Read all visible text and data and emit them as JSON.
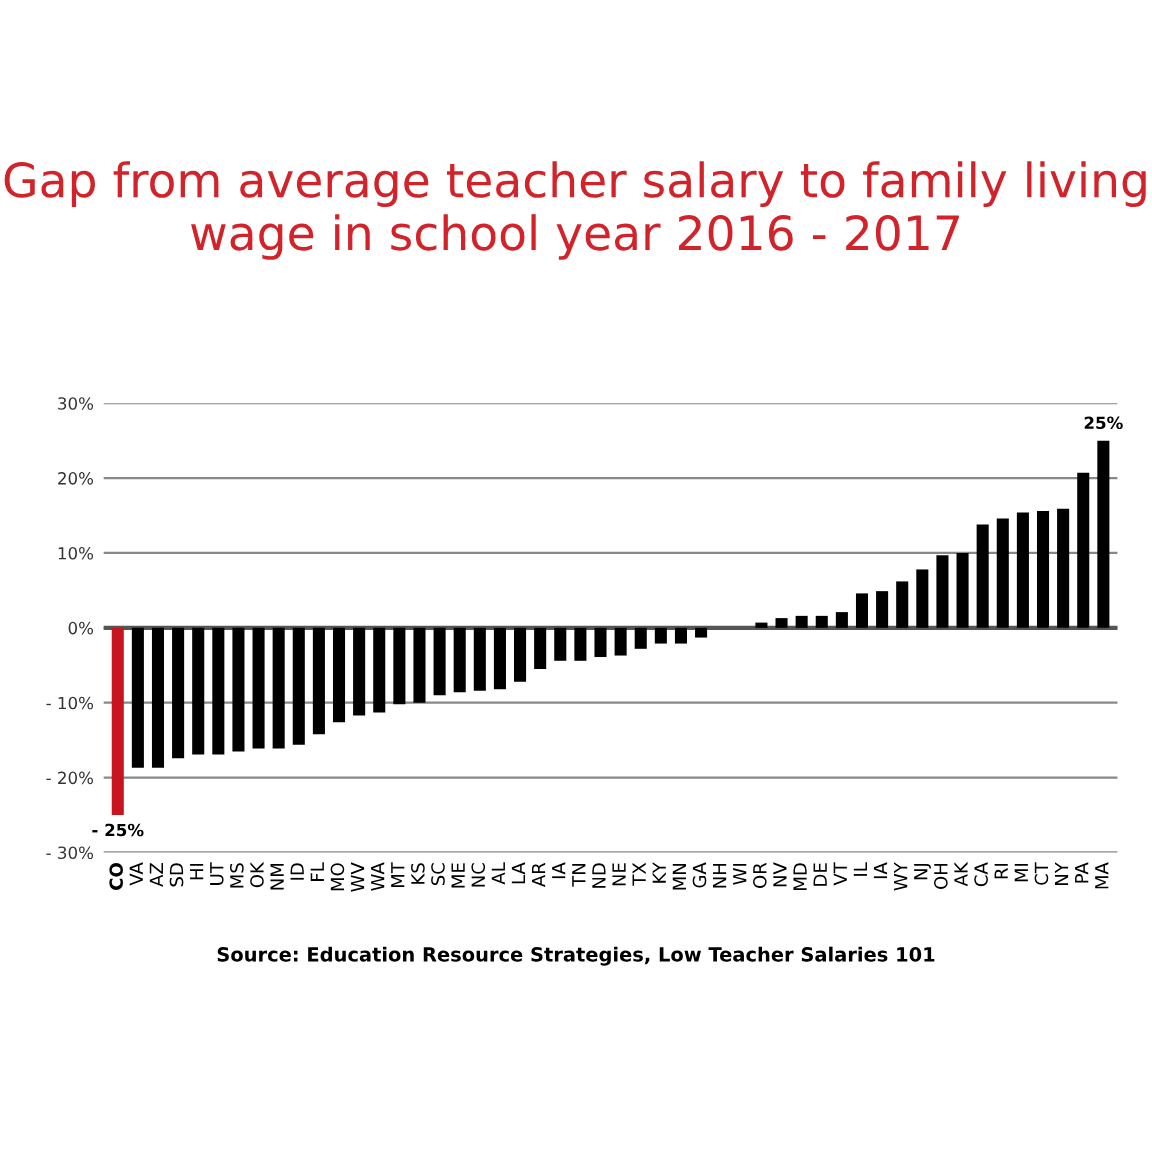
{
  "chart_data": {
    "type": "bar",
    "title": "Gap from average teacher salary to family living wage in school year 2016 - 2017",
    "categories": [
      "CO",
      "VA",
      "AZ",
      "SD",
      "HI",
      "UT",
      "MS",
      "OK",
      "NM",
      "ID",
      "FL",
      "MO",
      "WV",
      "WA",
      "MT",
      "KS",
      "SC",
      "ME",
      "NC",
      "AL",
      "LA",
      "AR",
      "IA",
      "TN",
      "ND",
      "NE",
      "TX",
      "KY",
      "MN",
      "GA",
      "NH",
      "WI",
      "OR",
      "NV",
      "MD",
      "DE",
      "VT",
      "IL",
      "IA",
      "WY",
      "NJ",
      "OH",
      "AK",
      "CA",
      "RI",
      "MI",
      "CT",
      "NY",
      "PA",
      "MA"
    ],
    "values": [
      -25,
      -18.7,
      -18.7,
      -17.4,
      -16.9,
      -16.9,
      -16.5,
      -16.1,
      -16.1,
      -15.6,
      -14.2,
      -12.6,
      -11.7,
      -11.3,
      -10.2,
      -10,
      -9,
      -8.6,
      -8.4,
      -8.2,
      -7.2,
      -5.5,
      -4.4,
      -4.4,
      -3.9,
      -3.7,
      -2.8,
      -2.1,
      -2.1,
      -1.3,
      0,
      0,
      0.7,
      1.3,
      1.6,
      1.6,
      2.1,
      4.6,
      4.9,
      6.2,
      7.8,
      9.7,
      10,
      13.8,
      14.6,
      15.4,
      15.6,
      15.9,
      20.7,
      25
    ],
    "colors": [
      "#c8141e",
      "#000000",
      "#000000",
      "#000000",
      "#000000",
      "#000000",
      "#000000",
      "#000000",
      "#000000",
      "#000000",
      "#000000",
      "#000000",
      "#000000",
      "#000000",
      "#000000",
      "#000000",
      "#000000",
      "#000000",
      "#000000",
      "#000000",
      "#000000",
      "#000000",
      "#000000",
      "#000000",
      "#000000",
      "#000000",
      "#000000",
      "#000000",
      "#000000",
      "#000000",
      "#000000",
      "#000000",
      "#000000",
      "#000000",
      "#000000",
      "#000000",
      "#000000",
      "#000000",
      "#000000",
      "#000000",
      "#000000",
      "#000000",
      "#000000",
      "#000000",
      "#000000",
      "#000000",
      "#000000",
      "#000000",
      "#000000",
      "#000000"
    ],
    "value_labels": [
      "- 25%",
      null,
      null,
      null,
      null,
      null,
      null,
      null,
      null,
      null,
      null,
      null,
      null,
      null,
      null,
      null,
      null,
      null,
      null,
      null,
      null,
      null,
      null,
      null,
      null,
      null,
      null,
      null,
      null,
      null,
      null,
      null,
      null,
      null,
      null,
      null,
      null,
      null,
      null,
      null,
      null,
      null,
      null,
      null,
      null,
      null,
      null,
      null,
      null,
      "25%"
    ],
    "ylim": [
      -30,
      30
    ],
    "yticks": [
      {
        "value": -30,
        "label": "- 30%"
      },
      {
        "value": -20,
        "label": "- 20%"
      },
      {
        "value": -10,
        "label": "- 10%"
      },
      {
        "value": 0,
        "label": "0%"
      },
      {
        "value": 10,
        "label": "10%"
      },
      {
        "value": 20,
        "label": "20%"
      },
      {
        "value": 30,
        "label": "30%"
      }
    ],
    "grid": "y",
    "annotations": [
      "Source: Education Resource Strategies, Low Teacher Salaries 101"
    ]
  }
}
